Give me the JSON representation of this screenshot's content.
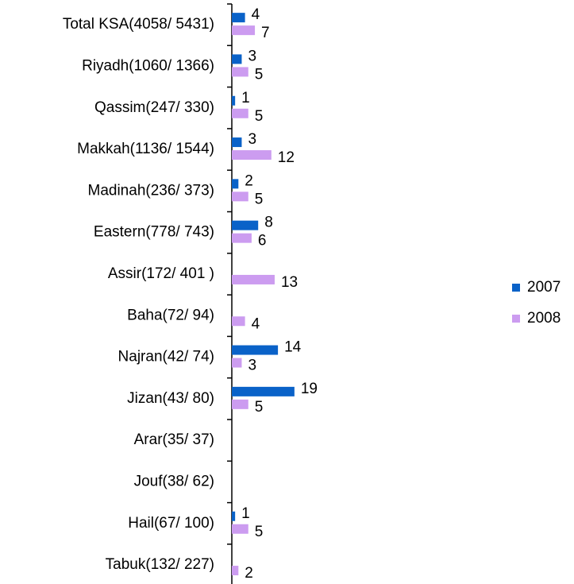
{
  "chart_data": {
    "type": "bar",
    "orientation": "horizontal",
    "categories": [
      "Total KSA(4058/ 5431)",
      "Riyadh(1060/ 1366)",
      "Qassim(247/ 330)",
      "Makkah(1136/ 1544)",
      "Madinah(236/ 373)",
      "Eastern(778/ 743)",
      "Assir(172/ 401 )",
      "Baha(72/ 94)",
      "Najran(42/ 74)",
      "Jizan(43/ 80)",
      "Arar(35/ 37)",
      "Jouf(38/ 62)",
      "Hail(67/ 100)",
      "Tabuk(132/ 227)"
    ],
    "series": [
      {
        "name": "2007",
        "color": "#0a62c8",
        "values": [
          4,
          3,
          1,
          3,
          2,
          8,
          null,
          null,
          14,
          19,
          null,
          null,
          1,
          null
        ]
      },
      {
        "name": "2008",
        "color": "#cc9cf0",
        "values": [
          7,
          5,
          5,
          12,
          5,
          6,
          13,
          4,
          3,
          5,
          null,
          null,
          5,
          2
        ]
      }
    ],
    "legend": "right"
  }
}
